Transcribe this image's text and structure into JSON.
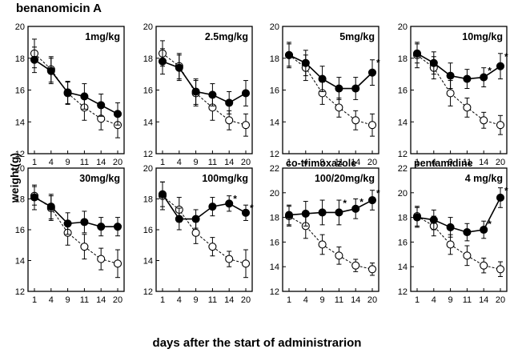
{
  "figure": {
    "title": "benanomicin A",
    "ylabel": "weight(g)",
    "xlabel": "days after the start of administrarion"
  },
  "chart_data": [
    {
      "type": "line",
      "title": "",
      "panel_label": "1mg/kg",
      "x": [
        1,
        4,
        9,
        11,
        14,
        20
      ],
      "ylim": [
        12,
        20
      ],
      "yticks": [
        12,
        14,
        16,
        18,
        20
      ],
      "series": [
        {
          "marker": "filled",
          "values": [
            17.9,
            17.2,
            15.85,
            15.6,
            15.05,
            14.5
          ],
          "errors": [
            0.8,
            0.8,
            0.7,
            0.8,
            0.7,
            0.7
          ]
        },
        {
          "marker": "open",
          "values": [
            18.3,
            17.3,
            15.8,
            14.9,
            14.2,
            13.8
          ],
          "errors": [
            0.9,
            0.8,
            0.7,
            0.8,
            0.7,
            0.8
          ]
        }
      ],
      "significant": []
    },
    {
      "type": "line",
      "title": "",
      "panel_label": "2.5mg/kg",
      "x": [
        1,
        4,
        9,
        11,
        14,
        20
      ],
      "ylim": [
        12,
        20
      ],
      "yticks": [
        12,
        14,
        16,
        18,
        20
      ],
      "series": [
        {
          "marker": "filled",
          "values": [
            17.8,
            17.4,
            15.9,
            15.7,
            15.2,
            15.8
          ],
          "errors": [
            0.8,
            0.8,
            0.8,
            0.7,
            0.7,
            0.8
          ]
        },
        {
          "marker": "open",
          "values": [
            18.3,
            17.5,
            15.8,
            14.9,
            14.1,
            13.8
          ],
          "errors": [
            0.8,
            0.8,
            0.8,
            0.8,
            0.6,
            0.7
          ]
        }
      ],
      "significant": []
    },
    {
      "type": "line",
      "title": "",
      "panel_label": "5mg/kg",
      "x": [
        1,
        4,
        9,
        11,
        14,
        20
      ],
      "ylim": [
        12,
        20
      ],
      "yticks": [
        12,
        14,
        16,
        18,
        20
      ],
      "series": [
        {
          "marker": "filled",
          "values": [
            18.2,
            17.7,
            16.7,
            16.1,
            16.1,
            17.1
          ],
          "errors": [
            0.7,
            0.8,
            0.8,
            0.7,
            0.7,
            0.8
          ]
        },
        {
          "marker": "open",
          "values": [
            18.2,
            17.4,
            15.8,
            14.9,
            14.1,
            13.8
          ],
          "errors": [
            0.8,
            0.8,
            0.7,
            0.6,
            0.6,
            0.7
          ]
        }
      ],
      "significant": [
        20
      ]
    },
    {
      "type": "line",
      "title": "",
      "panel_label": "10mg/kg",
      "x": [
        1,
        4,
        9,
        11,
        14,
        20
      ],
      "ylim": [
        12,
        20
      ],
      "yticks": [
        12,
        14,
        16,
        18,
        20
      ],
      "series": [
        {
          "marker": "filled",
          "values": [
            18.3,
            17.7,
            16.9,
            16.7,
            16.8,
            17.5
          ],
          "errors": [
            0.6,
            0.7,
            0.8,
            0.6,
            0.6,
            0.8
          ]
        },
        {
          "marker": "open",
          "values": [
            18.2,
            17.4,
            15.8,
            14.9,
            14.1,
            13.8
          ],
          "errors": [
            0.8,
            0.7,
            0.8,
            0.6,
            0.5,
            0.6
          ]
        }
      ],
      "significant": [
        14,
        20
      ]
    },
    {
      "type": "line",
      "title": "",
      "panel_label": "30mg/kg",
      "x": [
        1,
        4,
        9,
        11,
        14,
        20
      ],
      "ylim": [
        12,
        20
      ],
      "yticks": [
        12,
        14,
        16,
        18,
        20
      ],
      "series": [
        {
          "marker": "filled",
          "values": [
            18.1,
            17.5,
            16.4,
            16.5,
            16.2,
            16.2
          ],
          "errors": [
            0.8,
            0.8,
            0.7,
            0.7,
            0.6,
            0.6
          ]
        },
        {
          "marker": "open",
          "values": [
            18.2,
            17.4,
            15.8,
            14.9,
            14.1,
            13.8
          ],
          "errors": [
            0.6,
            0.8,
            0.8,
            0.8,
            0.7,
            0.9
          ]
        }
      ],
      "significant": []
    },
    {
      "type": "line",
      "title": "",
      "panel_label": "100mg/kg",
      "x": [
        1,
        4,
        9,
        11,
        14,
        20
      ],
      "ylim": [
        12,
        20
      ],
      "yticks": [
        12,
        14,
        16,
        18,
        20
      ],
      "series": [
        {
          "marker": "filled",
          "values": [
            18.3,
            16.7,
            16.7,
            17.5,
            17.7,
            17.1
          ],
          "errors": [
            0.8,
            0.7,
            0.6,
            0.6,
            0.5,
            0.5
          ]
        },
        {
          "marker": "open",
          "values": [
            18.2,
            17.3,
            15.8,
            14.9,
            14.1,
            13.8
          ],
          "errors": [
            0.9,
            0.8,
            0.7,
            0.6,
            0.5,
            0.9
          ]
        }
      ],
      "significant": [
        14,
        20
      ]
    },
    {
      "type": "line",
      "title": "co-trimoxazole",
      "panel_label": "100/20mg/kg",
      "x": [
        1,
        4,
        9,
        11,
        14,
        20
      ],
      "ylim": [
        12,
        22
      ],
      "yticks": [
        12,
        14,
        16,
        18,
        20,
        22
      ],
      "series": [
        {
          "marker": "filled",
          "values": [
            18.2,
            18.3,
            18.4,
            18.4,
            18.7,
            19.4
          ],
          "errors": [
            0.8,
            1.0,
            1.0,
            1.0,
            0.8,
            0.8
          ]
        },
        {
          "marker": "open",
          "values": [
            18.1,
            17.3,
            15.8,
            14.9,
            14.1,
            13.8
          ],
          "errors": [
            0.8,
            1.0,
            0.8,
            0.7,
            0.5,
            0.5
          ]
        }
      ],
      "significant": [
        11,
        14,
        20
      ]
    },
    {
      "type": "line",
      "title": "pentamidine",
      "panel_label": "4 mg/kg",
      "x": [
        1,
        4,
        9,
        11,
        14,
        20
      ],
      "ylim": [
        12,
        22
      ],
      "yticks": [
        12,
        14,
        16,
        18,
        20,
        22
      ],
      "series": [
        {
          "marker": "filled",
          "values": [
            18.0,
            17.8,
            17.2,
            16.8,
            17.0,
            19.6
          ],
          "errors": [
            0.8,
            0.8,
            0.8,
            0.7,
            0.7,
            0.8
          ]
        },
        {
          "marker": "open",
          "values": [
            18.1,
            17.3,
            15.8,
            14.9,
            14.1,
            13.8
          ],
          "errors": [
            0.8,
            0.8,
            0.8,
            0.8,
            0.6,
            0.6
          ]
        }
      ],
      "significant": [
        14,
        20
      ]
    }
  ]
}
